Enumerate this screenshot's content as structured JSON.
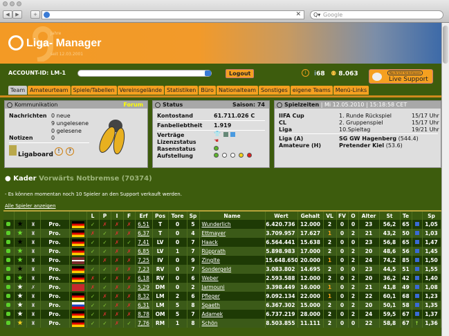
{
  "browser": {
    "search_placeholder": "Google",
    "url": ""
  },
  "banner": {
    "title": "Liga- Manager",
    "years": "9",
    "jahre": "Jahre",
    "seit": "seit 12.03.2001"
  },
  "account": {
    "id": "ACCOUNT-ID: LM-1",
    "logout": "Logout",
    "count1": "68",
    "count2": "8.063",
    "live_note": "Nachricht hinterlassen",
    "live": "Live Support"
  },
  "tabs": [
    "Team",
    "Amateurteam",
    "Spiele/Tabellen",
    "Vereinsgelände",
    "Statistiken",
    "Büro",
    "Nationalteam",
    "Sonstiges",
    "eigene Teams",
    "Menü-Links"
  ],
  "komm": {
    "title": "Kommunikation",
    "forum": "Forum",
    "nachrichten": "Nachrichten",
    "neue": "0 neue",
    "ungelesene": "9 ungelesene",
    "gelesene": "0 gelesene",
    "notizen": "Notizen",
    "notizen_val": "0",
    "ligaboard": "Ligaboard"
  },
  "status": {
    "title": "Status",
    "saison": "Saison: 74",
    "konto_l": "Kontostand",
    "konto": "61.711.026 C",
    "fan_l": "Fanbeliebtheit",
    "fan": "1.919",
    "vertraege": "Verträge",
    "lizenz": "Lizenzstatus",
    "rasen": "Rasenstatus",
    "aufstellung": "Aufstellung",
    "colors": {
      "green": "#5bb52a",
      "yellow": "#f2d21a",
      "red": "#e02020"
    }
  },
  "spiel": {
    "title": "Spielzeiten",
    "date": "| Mi 12.05.2010 | 15:18:58 CET",
    "rows": [
      [
        "IIFA Cup",
        "1. Runde Rückspiel",
        "15/17 Uhr"
      ],
      [
        "CL",
        "2. Gruppenspiel",
        "15/17 Uhr"
      ],
      [
        "Liga",
        "10.Spieltag",
        "19/21 Uhr"
      ]
    ],
    "liga_a": "Liga (A)",
    "liga_a_team": "SG GW Hagenberg",
    "liga_a_val": "(544.4)",
    "amat": "Amateure (H)",
    "amat_team": "Pretender Kiel",
    "amat_val": "(53.6)"
  },
  "kader": {
    "title": "Kader",
    "team": "Vorwärts Notbremse (70374)",
    "msg": "- Es können momentan noch 10 Spieler an den Support verkauft werden.",
    "alle": "Alle Spieler anzeigen"
  },
  "table": {
    "headers": [
      "",
      "",
      "",
      "",
      "",
      "L",
      "P",
      "I",
      "F",
      "Erf",
      "Pos",
      "Tore",
      "Sp",
      "Name",
      "Wert",
      "Gehalt",
      "VL",
      "FV",
      "O",
      "Alter",
      "St",
      "Te",
      "",
      "Sp"
    ],
    "rows": [
      {
        "star": "black",
        "trophy": "ok",
        "status": "Pro.",
        "flag": "de",
        "lpif": [
          1,
          0,
          0,
          0
        ],
        "erf": "6,51",
        "pos": "T",
        "tore": "0",
        "sp": "5",
        "name": "Wunderlich",
        "wert": "6.420.736",
        "gehalt": "12.000",
        "vl": "2",
        "fv": "0",
        "o": "0",
        "alter": "23",
        "st": "56,2",
        "te": "65",
        "icon": "square",
        "sp2": "1,05"
      },
      {
        "star": "green",
        "trophy": "ok",
        "status": "Pro.",
        "flag": "de",
        "lpif": [
          0,
          1,
          0,
          0
        ],
        "erf": "6,37",
        "pos": "T",
        "tore": "0",
        "sp": "4",
        "name": "Ettmayer",
        "wert": "3.709.957",
        "gehalt": "17.627",
        "vl": "1",
        "fv": "0",
        "o": "2",
        "alter": "21",
        "st": "43,2",
        "te": "50",
        "icon": "square",
        "sp2": "1,03"
      },
      {
        "star": "black",
        "trophy": "ok",
        "status": "Pro.",
        "flag": "de",
        "lpif": [
          1,
          1,
          0,
          1
        ],
        "erf": "7,41",
        "pos": "LV",
        "tore": "0",
        "sp": "7",
        "name": "Haack",
        "wert": "6.564.441",
        "gehalt": "15.638",
        "vl": "2",
        "fv": "0",
        "o": "0",
        "alter": "23",
        "st": "56,8",
        "te": "65",
        "icon": "square",
        "sp2": "1,47"
      },
      {
        "star": "green",
        "trophy": "ok",
        "status": "Pro.",
        "flag": "de",
        "lpif": [
          1,
          1,
          0,
          0
        ],
        "erf": "6,85",
        "pos": "LV",
        "tore": "1",
        "sp": "7",
        "name": "Rüpprath",
        "wert": "5.898.983",
        "gehalt": "17.000",
        "vl": "2",
        "fv": "0",
        "o": "2",
        "alter": "20",
        "st": "48,6",
        "te": "56",
        "icon": "square",
        "sp2": "1,45"
      },
      {
        "star": "green",
        "trophy": "ok",
        "status": "Pro.",
        "flag": "lv",
        "lpif": [
          1,
          0,
          0,
          0
        ],
        "erf": "7,25",
        "pos": "IV",
        "tore": "0",
        "sp": "9",
        "name": "Zinglte",
        "wert": "15.648.650",
        "gehalt": "20.000",
        "vl": "1",
        "fv": "0",
        "o": "2",
        "alter": "24",
        "st": "74,2",
        "te": "85",
        "icon": "square",
        "sp2": "1,50"
      },
      {
        "star": "black",
        "trophy": "ok",
        "status": "Pro.",
        "flag": "de",
        "lpif": [
          1,
          1,
          0,
          0
        ],
        "erf": "7,23",
        "pos": "RV",
        "tore": "0",
        "sp": "7",
        "name": "Sondergeld",
        "wert": "3.083.802",
        "gehalt": "14.695",
        "vl": "2",
        "fv": "0",
        "o": "0",
        "alter": "23",
        "st": "44,5",
        "te": "51",
        "icon": "square",
        "sp2": "1,55"
      },
      {
        "star": "green",
        "trophy": "ok",
        "status": "Pro.",
        "flag": "de",
        "lpif": [
          0,
          1,
          0,
          0
        ],
        "erf": "6,18",
        "pos": "RV",
        "tore": "0",
        "sp": "6",
        "name": "Weber",
        "wert": "2.593.588",
        "gehalt": "12.000",
        "vl": "2",
        "fv": "0",
        "o": "2",
        "alter": "20",
        "st": "36,2",
        "te": "42",
        "icon": "square",
        "sp2": "1,40"
      },
      {
        "star": "white",
        "trophy": "crossed",
        "status": "Pro.",
        "flag": "ma",
        "lpif": [
          0,
          1,
          0,
          0
        ],
        "erf": "5,29",
        "pos": "DM",
        "tore": "0",
        "sp": "2",
        "name": "Jarmouni",
        "wert": "3.398.449",
        "gehalt": "16.000",
        "vl": "1",
        "fv": "0",
        "o": "2",
        "alter": "21",
        "st": "41,8",
        "te": "49",
        "icon": "square",
        "sp2": "1,08"
      },
      {
        "star": "white",
        "trophy": "ok",
        "status": "Pro.",
        "flag": "de",
        "lpif": [
          1,
          0,
          0,
          0
        ],
        "erf": "8,32",
        "pos": "LM",
        "tore": "2",
        "sp": "6",
        "name": "Pfleger",
        "wert": "9.092.134",
        "gehalt": "22.000",
        "vl": "1",
        "fv": "0",
        "o": "2",
        "alter": "22",
        "st": "60,1",
        "te": "68",
        "icon": "square",
        "sp2": "1,23"
      },
      {
        "star": "white",
        "trophy": "ok",
        "status": "Pro.",
        "flag": "si",
        "lpif": [
          1,
          1,
          0,
          0
        ],
        "erf": "6,31",
        "pos": "LM",
        "tore": "5",
        "sp": "8",
        "name": "Spaeth",
        "wert": "6.367.302",
        "gehalt": "15.000",
        "vl": "2",
        "fv": "0",
        "o": "2",
        "alter": "20",
        "st": "50,1",
        "te": "58",
        "icon": "square",
        "sp2": "1,35"
      },
      {
        "star": "white",
        "trophy": "ok",
        "status": "Pro.",
        "flag": "de",
        "lpif": [
          1,
          0,
          0,
          0
        ],
        "erf": "8,78",
        "pos": "OM",
        "tore": "5",
        "sp": "7",
        "name": "Adamek",
        "wert": "6.737.219",
        "gehalt": "28.000",
        "vl": "2",
        "fv": "0",
        "o": "2",
        "alter": "24",
        "st": "59,5",
        "te": "67",
        "icon": "square",
        "sp2": "1,37"
      },
      {
        "star": "yellow",
        "trophy": "ok",
        "status": "Pro.",
        "flag": "de",
        "lpif": [
          1,
          1,
          0,
          1
        ],
        "erf": "7,76",
        "pos": "RM",
        "tore": "1",
        "sp": "8",
        "name": "Schön",
        "wert": "8.503.855",
        "gehalt": "11.111",
        "vl": "2",
        "fv": "0",
        "o": "0",
        "alter": "22",
        "st": "58,8",
        "te": "67",
        "icon": "arrow-up",
        "sp2": "1,36"
      }
    ]
  }
}
